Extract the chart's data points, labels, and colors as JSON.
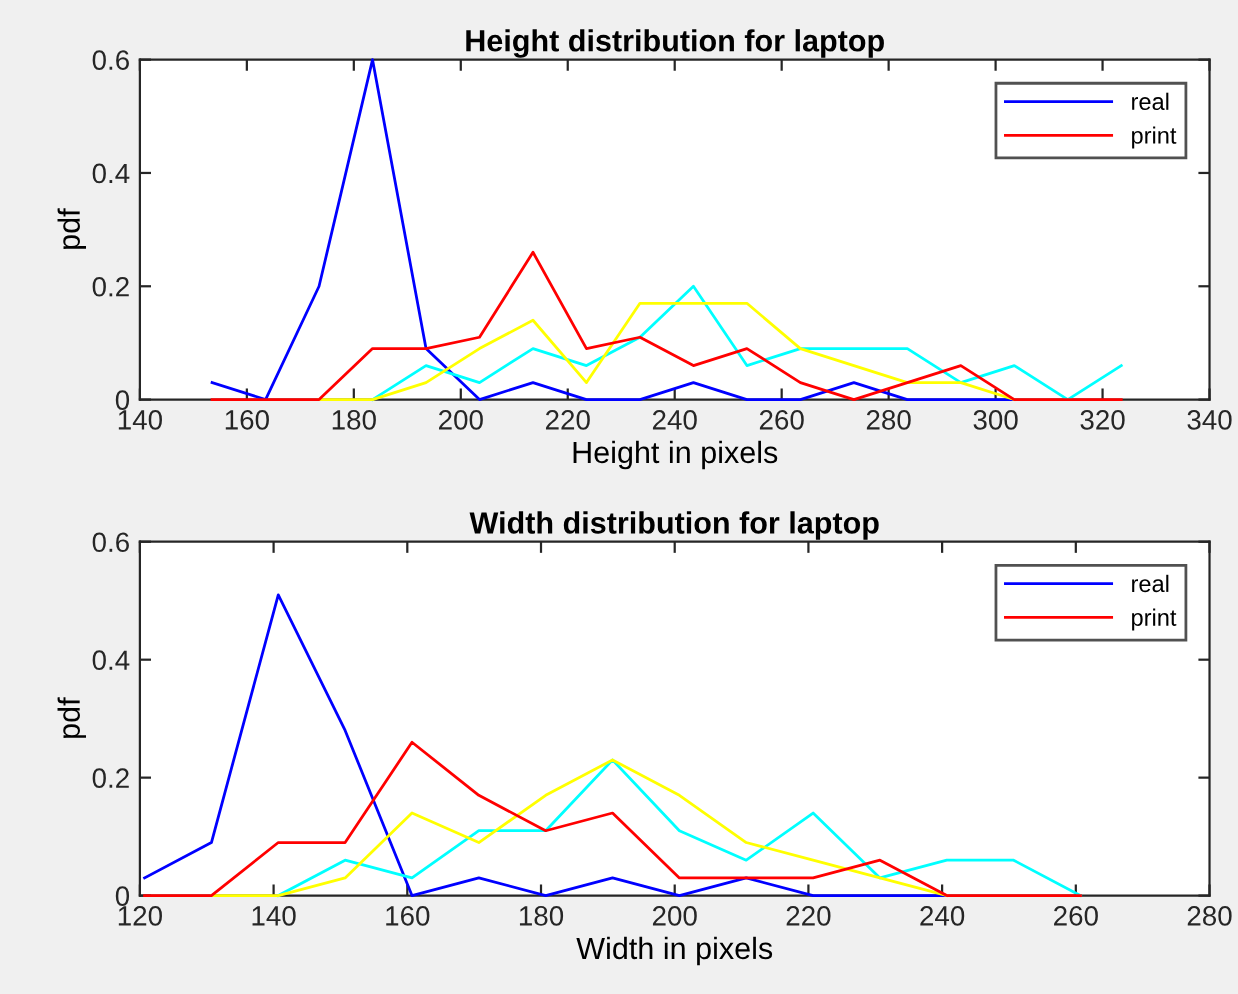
{
  "chart_data": [
    {
      "type": "line",
      "title": "Height distribution for laptop",
      "xlabel": "Height in pixels",
      "ylabel": "pdf",
      "x": [
        153.5,
        163.5,
        173.5,
        183.5,
        193.5,
        203.5,
        213.5,
        223.5,
        233.5,
        243.5,
        253.5,
        263.5,
        273.5,
        283.5,
        293.5,
        303.5,
        313.5,
        323.5
      ],
      "series": [
        {
          "name": "real",
          "color": "#0000ff",
          "values": [
            0.03,
            0,
            0.2,
            0.6,
            0.09,
            0,
            0.03,
            0,
            0,
            0.03,
            0,
            0,
            0.03,
            0,
            0,
            0,
            null,
            null
          ]
        },
        {
          "color": "#00ffff",
          "values": [
            null,
            null,
            null,
            0,
            0.06,
            0.03,
            0.09,
            0.06,
            0.11,
            0.2,
            0.06,
            0.09,
            0.09,
            0.09,
            0.03,
            0.06,
            0,
            0.06
          ]
        },
        {
          "color": "#ffff00",
          "values": [
            null,
            null,
            0,
            0,
            0.03,
            0.09,
            0.14,
            0.03,
            0.17,
            0.17,
            0.17,
            0.09,
            0.06,
            0.03,
            0.03,
            0,
            null,
            null
          ]
        },
        {
          "name": "print",
          "color": "#ff0000",
          "values": [
            0,
            0,
            0,
            0.09,
            0.09,
            0.11,
            0.26,
            0.09,
            0.11,
            0.06,
            0.09,
            0.03,
            0,
            0.03,
            0.06,
            0,
            0,
            0
          ]
        }
      ],
      "xlim": [
        140,
        340
      ],
      "xticks": [
        140,
        160,
        180,
        200,
        220,
        240,
        260,
        280,
        300,
        320,
        340
      ],
      "ylim": [
        0,
        0.6
      ],
      "yticks": [
        0,
        0.2,
        0.4,
        0.6
      ],
      "grid": false,
      "legend": "top right",
      "line_style": "solid",
      "marker": "none"
    },
    {
      "type": "line",
      "title": "Width distribution for laptop",
      "xlabel": "Width in pixels",
      "ylabel": "pdf",
      "x": [
        120.7,
        130.7,
        140.7,
        150.7,
        160.7,
        170.7,
        180.7,
        190.7,
        200.7,
        210.7,
        220.7,
        230.7,
        240.7,
        250.7,
        260.7
      ],
      "series": [
        {
          "name": "real",
          "color": "#0000ff",
          "values": [
            0.03,
            0.09,
            0.51,
            0.28,
            0,
            0.03,
            0,
            0.03,
            0,
            0.03,
            0,
            0,
            0,
            null,
            null
          ]
        },
        {
          "color": "#00ffff",
          "values": [
            null,
            null,
            0,
            0.06,
            0.03,
            0.11,
            0.11,
            0.23,
            0.11,
            0.06,
            0.14,
            0.03,
            0.06,
            0.06,
            0
          ]
        },
        {
          "color": "#ffff00",
          "values": [
            null,
            0,
            0,
            0.03,
            0.14,
            0.09,
            0.17,
            0.23,
            0.17,
            0.09,
            0.06,
            0.03,
            0,
            null,
            null
          ]
        },
        {
          "name": "print",
          "color": "#ff0000",
          "values": [
            0,
            0,
            0.09,
            0.09,
            0.26,
            0.17,
            0.11,
            0.14,
            0.03,
            0.03,
            0.03,
            0.06,
            0,
            0,
            0
          ]
        }
      ],
      "xlim": [
        120,
        280
      ],
      "xticks": [
        120,
        140,
        160,
        180,
        200,
        220,
        240,
        260,
        280
      ],
      "ylim": [
        0,
        0.6
      ],
      "yticks": [
        0,
        0.2,
        0.4,
        0.6
      ],
      "grid": false,
      "legend": "top right",
      "line_style": "solid",
      "marker": "none"
    }
  ]
}
